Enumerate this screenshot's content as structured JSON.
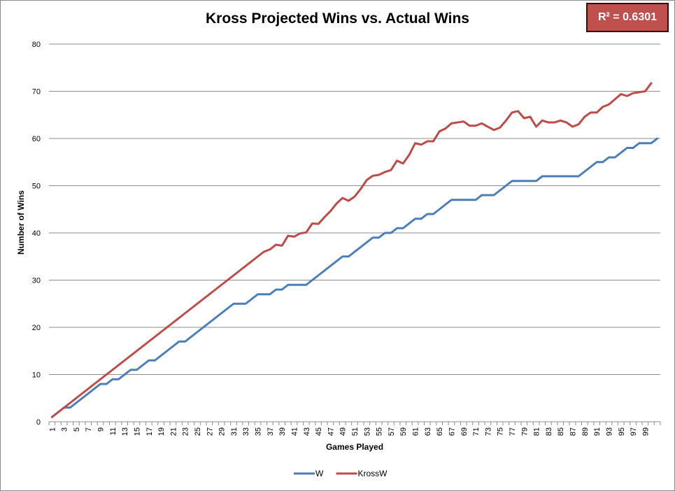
{
  "r2_label": "R² = 0.6301",
  "chart_data": {
    "type": "line",
    "title": "Kross Projected Wins vs. Actual Wins",
    "xlabel": "Games Played",
    "ylabel": "Number of Wins",
    "ylim": [
      0,
      80
    ],
    "yticks": [
      0,
      10,
      20,
      30,
      40,
      50,
      60,
      70,
      80
    ],
    "xlim": [
      1,
      100
    ],
    "xtick_labels": [
      "1",
      "3",
      "5",
      "7",
      "9",
      "11",
      "13",
      "15",
      "17",
      "19",
      "21",
      "23",
      "25",
      "27",
      "29",
      "31",
      "33",
      "35",
      "37",
      "39",
      "41",
      "43",
      "45",
      "47",
      "49",
      "51",
      "53",
      "55",
      "57",
      "59",
      "61",
      "63",
      "65",
      "67",
      "69",
      "71",
      "73",
      "75",
      "77",
      "79",
      "81",
      "83",
      "85",
      "87",
      "89",
      "91",
      "93",
      "95",
      "97",
      "99"
    ],
    "grid": "horizontal",
    "legend_position": "bottom",
    "series": [
      {
        "name": "W",
        "color": "#4a7ebb",
        "values": [
          1,
          2,
          3,
          3,
          4,
          5,
          6,
          7,
          8,
          8,
          9,
          9,
          10,
          11,
          11,
          12,
          13,
          13,
          14,
          15,
          16,
          17,
          17,
          18,
          19,
          20,
          21,
          22,
          23,
          24,
          25,
          25,
          25,
          26,
          27,
          27,
          27,
          28,
          28,
          29,
          29,
          29,
          29,
          30,
          31,
          32,
          33,
          34,
          35,
          35,
          36,
          37,
          38,
          39,
          39,
          40,
          40,
          41,
          41,
          42,
          43,
          43,
          44,
          44,
          45,
          46,
          47,
          47,
          47,
          47,
          47,
          48,
          48,
          48,
          49,
          50,
          51,
          51,
          51,
          51,
          51,
          52,
          52,
          52,
          52,
          52,
          52,
          52,
          53,
          54,
          55,
          55,
          56,
          56,
          57,
          58,
          58,
          59,
          59,
          59,
          60
        ]
      },
      {
        "name": "KrossW",
        "color": "#be4b48",
        "values": [
          1,
          2,
          3,
          4,
          5,
          6,
          7,
          8,
          9,
          10,
          11,
          12,
          13,
          14,
          15,
          16,
          17,
          18,
          19,
          20,
          21,
          22,
          23,
          24,
          25,
          26,
          27,
          28,
          29,
          30,
          31,
          32,
          33,
          34,
          35,
          36,
          36.5,
          37.5,
          37.3,
          39.4,
          39.2,
          39.9,
          40.1,
          42,
          41.9,
          43.3,
          44.6,
          46.2,
          47.4,
          46.8,
          47.7,
          49.3,
          51.2,
          52.1,
          52.3,
          52.9,
          53.3,
          55.3,
          54.7,
          56.5,
          59,
          58.7,
          59.4,
          59.4,
          61.5,
          62.1,
          63.2,
          63.4,
          63.6,
          62.7,
          62.7,
          63.2,
          62.5,
          61.8,
          62.3,
          63.8,
          65.5,
          65.8,
          64.3,
          64.6,
          62.5,
          63.8,
          63.4,
          63.4,
          63.8,
          63.4,
          62.5,
          63,
          64.6,
          65.5,
          65.5,
          66.7,
          67.2,
          68.3,
          69.4,
          69,
          69.6,
          69.8,
          70,
          71.7
        ]
      }
    ]
  }
}
